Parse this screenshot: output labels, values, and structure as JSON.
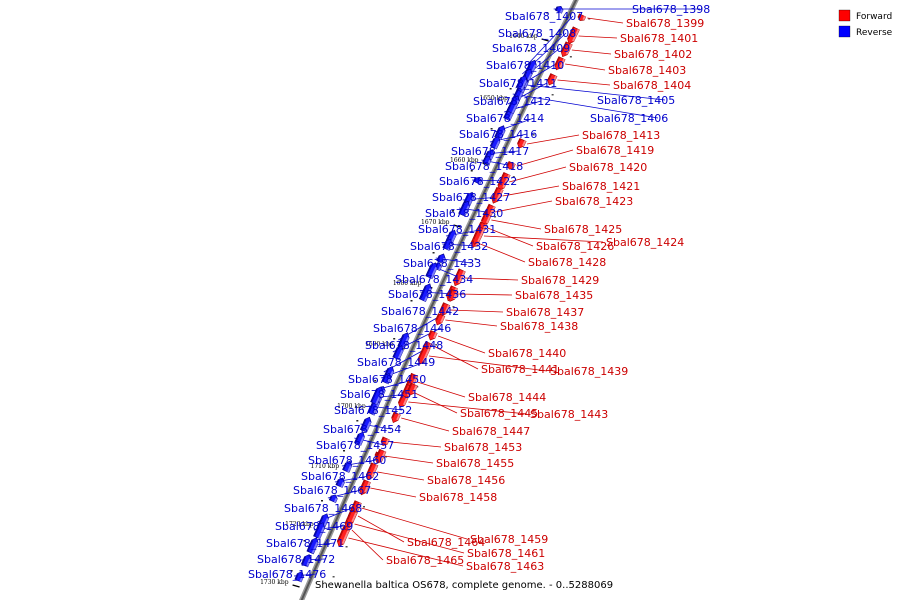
{
  "caption": "Shewanella baltica OS678, complete genome. - 0..5288069",
  "legend": [
    {
      "label": "Forward",
      "color": "#ff0000"
    },
    {
      "label": "Reverse",
      "color": "#0000ff"
    }
  ],
  "ticks": [
    "1640 kbp",
    "1650 kbp",
    "1660 kbp",
    "1670 kbp",
    "1680 kbp",
    "1690 kbp",
    "1700 kbp",
    "1710 kbp",
    "1720 kbp",
    "1730 kbp"
  ],
  "reverse_genes": [
    "Sbal678_1398",
    "Sbal678_1405",
    "Sbal678_1406",
    "Sbal678_1407",
    "Sbal678_1408",
    "Sbal678_1409",
    "Sbal678_1410",
    "Sbal678_1411",
    "Sbal678_1412",
    "Sbal678_1414",
    "Sbal678_1416",
    "Sbal678_1417",
    "Sbal678_1418",
    "Sbal678_1422",
    "Sbal678_1427",
    "Sbal678_1430",
    "Sbal678_1431",
    "Sbal678_1432",
    "Sbal678_1433",
    "Sbal678_1434",
    "Sbal678_1436",
    "Sbal678_1442",
    "Sbal678_1446",
    "Sbal678_1448",
    "Sbal678_1449",
    "Sbal678_1450",
    "Sbal678_1451",
    "Sbal678_1452",
    "Sbal678_1454",
    "Sbal678_1457",
    "Sbal678_1460",
    "Sbal678_1462",
    "Sbal678_1467",
    "Sbal678_1468",
    "Sbal678_1469",
    "Sbal678_1471",
    "Sbal678_1472",
    "Sbal678_1476"
  ],
  "forward_genes": [
    "Sbal678_1399",
    "Sbal678_1401",
    "Sbal678_1402",
    "Sbal678_1403",
    "Sbal678_1404",
    "Sbal678_1413",
    "Sbal678_1419",
    "Sbal678_1420",
    "Sbal678_1421",
    "Sbal678_1423",
    "Sbal678_1425",
    "Sbal678_1426",
    "Sbal678_1424",
    "Sbal678_1428",
    "Sbal678_1429",
    "Sbal678_1435",
    "Sbal678_1437",
    "Sbal678_1438",
    "Sbal678_1440",
    "Sbal678_1441",
    "Sbal678_1439",
    "Sbal678_1444",
    "Sbal678_1445",
    "Sbal678_1443",
    "Sbal678_1447",
    "Sbal678_1453",
    "Sbal678_1455",
    "Sbal678_1456",
    "Sbal678_1458",
    "Sbal678_1459",
    "Sbal678_1464",
    "Sbal678_1461",
    "Sbal678_1465",
    "Sbal678_1463"
  ]
}
